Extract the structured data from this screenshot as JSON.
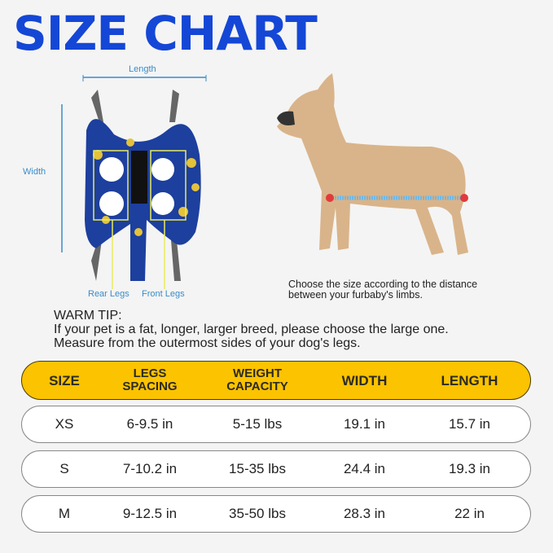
{
  "title": "SIZE CHART",
  "diagram": {
    "length_label": "Length",
    "width_label": "Width",
    "rear_legs_label": "Rear Legs",
    "front_legs_label": "Front Legs"
  },
  "caption": {
    "line1": "Choose the size according to the distance",
    "line2": "between your furbaby's limbs."
  },
  "tip": {
    "heading": "WARM TIP:",
    "line1": "If your pet is a fat, longer, larger breed, please choose the large one.",
    "line2": "Measure from the outermost sides of your dog's legs."
  },
  "table": {
    "headers": [
      [
        "SIZE",
        ""
      ],
      [
        "LEGS",
        "SPACING"
      ],
      [
        "WEIGHT",
        "CAPACITY"
      ],
      [
        "WIDTH",
        ""
      ],
      [
        "LENGTH",
        ""
      ]
    ],
    "rows": [
      [
        "XS",
        "6-9.5 in",
        "5-15 lbs",
        "19.1 in",
        "15.7 in"
      ],
      [
        "S",
        "7-10.2 in",
        "15-35 lbs",
        "24.4 in",
        "19.3 in"
      ],
      [
        "M",
        "9-12.5 in",
        "35-50 lbs",
        "28.3 in",
        "22 in"
      ]
    ]
  },
  "colors": {
    "title": "#1447d6",
    "header": "#fbc300",
    "measure": "#3a8cc8",
    "harness": "#1d3f9e",
    "duck": "#e5c23a"
  }
}
